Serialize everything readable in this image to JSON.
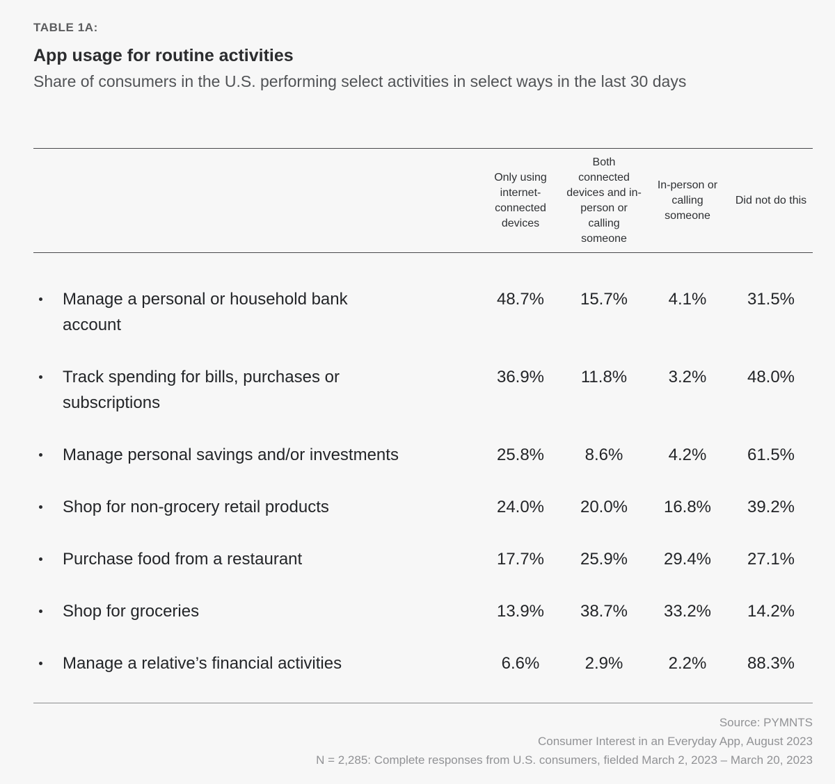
{
  "header": {
    "eyebrow": "TABLE 1A:",
    "title": "App usage for routine activities",
    "subtitle": "Share of consumers in the U.S. performing select activities in select ways in the last 30 days"
  },
  "table": {
    "columns": [
      "Only using internet-connected devices",
      "Both connected devices and in-person or calling someone",
      "In-person or calling someone",
      "Did not do this"
    ],
    "rows": [
      {
        "activity": "Manage a personal or household bank account",
        "values": [
          "48.7%",
          "15.7%",
          "4.1%",
          "31.5%"
        ]
      },
      {
        "activity": "Track spending for bills, purchases or subscriptions",
        "values": [
          "36.9%",
          "11.8%",
          "3.2%",
          "48.0%"
        ]
      },
      {
        "activity": "Manage personal savings and/or investments",
        "values": [
          "25.8%",
          "8.6%",
          "4.2%",
          "61.5%"
        ]
      },
      {
        "activity": "Shop for non-grocery retail products",
        "values": [
          "24.0%",
          "20.0%",
          "16.8%",
          "39.2%"
        ]
      },
      {
        "activity": "Purchase food from a restaurant",
        "values": [
          "17.7%",
          "25.9%",
          "29.4%",
          "27.1%"
        ]
      },
      {
        "activity": "Shop for groceries",
        "values": [
          "13.9%",
          "38.7%",
          "33.2%",
          "14.2%"
        ]
      },
      {
        "activity": "Manage a relative’s financial activities",
        "values": [
          "6.6%",
          "2.9%",
          "2.2%",
          "88.3%"
        ]
      }
    ]
  },
  "footer": {
    "source": "Source: PYMNTS",
    "publication": "Consumer Interest in an Everyday App, August 2023",
    "sample": "N = 2,285: Complete responses from U.S. consumers, fielded March 2, 2023 – March 20, 2023"
  },
  "colors": {
    "background": "#f7f7f7",
    "text_primary": "#232528",
    "text_muted": "#5b5c5e",
    "footer_text": "#919295",
    "rule_dark": "#47484b",
    "rule_light": "#8c8d8f"
  },
  "chart_data": {
    "type": "table",
    "title": "App usage for routine activities",
    "subtitle": "Share of consumers in the U.S. performing select activities in select ways in the last 30 days",
    "unit": "percent",
    "columns": [
      "Only using internet-connected devices",
      "Both connected devices and in-person or calling someone",
      "In-person or calling someone",
      "Did not do this"
    ],
    "rows": [
      {
        "activity": "Manage a personal or household bank account",
        "values": [
          48.7,
          15.7,
          4.1,
          31.5
        ]
      },
      {
        "activity": "Track spending for bills, purchases or subscriptions",
        "values": [
          36.9,
          11.8,
          3.2,
          48.0
        ]
      },
      {
        "activity": "Manage personal savings and/or investments",
        "values": [
          25.8,
          8.6,
          4.2,
          61.5
        ]
      },
      {
        "activity": "Shop for non-grocery retail products",
        "values": [
          24.0,
          20.0,
          16.8,
          39.2
        ]
      },
      {
        "activity": "Purchase food from a restaurant",
        "values": [
          17.7,
          25.9,
          29.4,
          27.1
        ]
      },
      {
        "activity": "Shop for groceries",
        "values": [
          13.9,
          38.7,
          33.2,
          14.2
        ]
      },
      {
        "activity": "Manage a relative’s financial activities",
        "values": [
          6.6,
          2.9,
          2.2,
          88.3
        ]
      }
    ],
    "source": "PYMNTS, Consumer Interest in an Everyday App, August 2023, N = 2,285, fielded March 2, 2023 – March 20, 2023"
  }
}
